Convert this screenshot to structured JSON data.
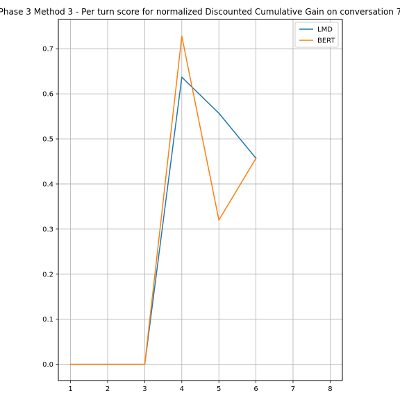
{
  "chart_data": {
    "type": "line",
    "title": "Phase 3 Method 3 - Per turn score for normalized Discounted Cumulative Gain on conversation 7",
    "xlabel": "",
    "ylabel": "",
    "x": [
      1,
      2,
      3,
      4,
      5,
      6
    ],
    "x_ticks": [
      "1",
      "2",
      "3",
      "4",
      "5",
      "6",
      "7",
      "8"
    ],
    "y_ticks": [
      "0.0",
      "0.1",
      "0.2",
      "0.3",
      "0.4",
      "0.5",
      "0.6",
      "0.7"
    ],
    "xlim": [
      0.67,
      8.33
    ],
    "ylim": [
      -0.036,
      0.765
    ],
    "grid": true,
    "legend_position": "top-right",
    "series": [
      {
        "name": "LMD",
        "color": "#1f77b4",
        "values": [
          0.0,
          0.0,
          0.0,
          0.637,
          0.557,
          0.457
        ]
      },
      {
        "name": "BERT",
        "color": "#ff7f0e",
        "values": [
          0.0,
          0.0,
          0.0,
          0.728,
          0.32,
          0.457
        ]
      }
    ]
  }
}
